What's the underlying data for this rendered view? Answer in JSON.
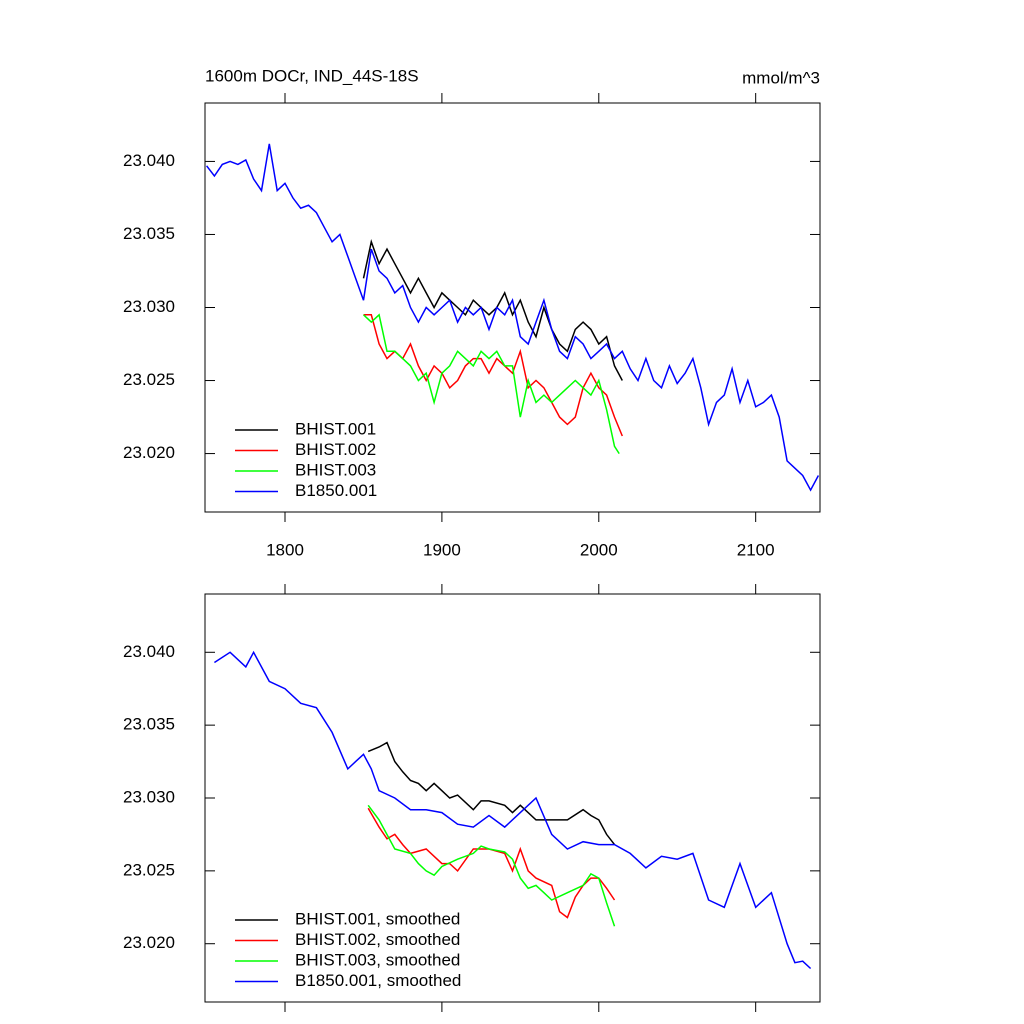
{
  "chart_data": [
    {
      "type": "line",
      "title": "1600m DOCr, IND_44S-18S",
      "units": "mmol/m^3",
      "xlim": [
        1749,
        2141
      ],
      "ylim": [
        23.016,
        23.044
      ],
      "xticks": [
        1800,
        1900,
        2000,
        2100
      ],
      "yticks": [
        {
          "value": 23.02,
          "label": "23.020"
        },
        {
          "value": 23.025,
          "label": "23.025"
        },
        {
          "value": 23.03,
          "label": "23.030"
        },
        {
          "value": 23.035,
          "label": "23.035"
        },
        {
          "value": 23.04,
          "label": "23.040"
        }
      ],
      "legend": "lower left",
      "series": [
        {
          "name": "BHIST.001",
          "color": "#000000",
          "x": [
            1850,
            1855,
            1860,
            1865,
            1870,
            1875,
            1880,
            1885,
            1890,
            1895,
            1900,
            1905,
            1910,
            1915,
            1920,
            1925,
            1930,
            1935,
            1940,
            1945,
            1950,
            1955,
            1960,
            1965,
            1970,
            1975,
            1980,
            1985,
            1990,
            1995,
            2000,
            2005,
            2010,
            2015
          ],
          "values": [
            23.032,
            23.0345,
            23.033,
            23.034,
            23.033,
            23.032,
            23.031,
            23.032,
            23.031,
            23.03,
            23.031,
            23.0305,
            23.03,
            23.0295,
            23.0305,
            23.03,
            23.0295,
            23.03,
            23.031,
            23.0295,
            23.0305,
            23.029,
            23.028,
            23.03,
            23.0285,
            23.0275,
            23.027,
            23.0285,
            23.029,
            23.0285,
            23.0275,
            23.028,
            23.026,
            23.025
          ]
        },
        {
          "name": "BHIST.002",
          "color": "#ff0000",
          "x": [
            1850,
            1855,
            1860,
            1865,
            1870,
            1875,
            1880,
            1885,
            1890,
            1895,
            1900,
            1905,
            1910,
            1915,
            1920,
            1925,
            1930,
            1935,
            1940,
            1945,
            1950,
            1955,
            1960,
            1965,
            1970,
            1975,
            1980,
            1985,
            1990,
            1995,
            2000,
            2005,
            2010,
            2015
          ],
          "values": [
            23.0295,
            23.0295,
            23.0275,
            23.0265,
            23.027,
            23.0265,
            23.0275,
            23.026,
            23.025,
            23.026,
            23.0255,
            23.0245,
            23.025,
            23.026,
            23.0265,
            23.0265,
            23.0255,
            23.0265,
            23.026,
            23.0255,
            23.027,
            23.0245,
            23.025,
            23.0245,
            23.0235,
            23.0225,
            23.022,
            23.0225,
            23.0245,
            23.0255,
            23.0245,
            23.024,
            23.0225,
            23.0212
          ]
        },
        {
          "name": "BHIST.003",
          "color": "#00ff00",
          "x": [
            1850,
            1855,
            1860,
            1865,
            1870,
            1875,
            1880,
            1885,
            1890,
            1895,
            1900,
            1905,
            1910,
            1915,
            1920,
            1925,
            1930,
            1935,
            1940,
            1945,
            1950,
            1955,
            1960,
            1965,
            1970,
            1975,
            1980,
            1985,
            1990,
            1995,
            2000,
            2005,
            2010,
            2013
          ],
          "values": [
            23.0295,
            23.029,
            23.0295,
            23.027,
            23.027,
            23.0265,
            23.026,
            23.025,
            23.0255,
            23.0235,
            23.0255,
            23.026,
            23.027,
            23.0265,
            23.026,
            23.027,
            23.0265,
            23.027,
            23.026,
            23.026,
            23.0225,
            23.025,
            23.0235,
            23.024,
            23.0235,
            23.024,
            23.0245,
            23.025,
            23.0245,
            23.024,
            23.025,
            23.023,
            23.0205,
            23.02
          ]
        },
        {
          "name": "B1850.001",
          "color": "#0000ff",
          "x": [
            1750,
            1755,
            1760,
            1765,
            1770,
            1775,
            1780,
            1785,
            1790,
            1795,
            1800,
            1805,
            1810,
            1815,
            1820,
            1825,
            1830,
            1835,
            1840,
            1845,
            1850,
            1855,
            1860,
            1865,
            1870,
            1875,
            1880,
            1885,
            1890,
            1895,
            1900,
            1905,
            1910,
            1915,
            1920,
            1925,
            1930,
            1935,
            1940,
            1945,
            1950,
            1955,
            1960,
            1965,
            1970,
            1975,
            1980,
            1985,
            1990,
            1995,
            2000,
            2005,
            2010,
            2015,
            2020,
            2025,
            2030,
            2035,
            2040,
            2045,
            2050,
            2055,
            2060,
            2065,
            2070,
            2075,
            2080,
            2085,
            2090,
            2095,
            2100,
            2105,
            2110,
            2115,
            2120,
            2125,
            2130,
            2135,
            2140
          ],
          "values": [
            23.0397,
            23.039,
            23.0398,
            23.04,
            23.0398,
            23.0401,
            23.0388,
            23.038,
            23.0412,
            23.038,
            23.0385,
            23.0375,
            23.0368,
            23.037,
            23.0365,
            23.0355,
            23.0345,
            23.035,
            23.0335,
            23.032,
            23.0305,
            23.034,
            23.0325,
            23.032,
            23.031,
            23.0315,
            23.03,
            23.029,
            23.03,
            23.0295,
            23.03,
            23.0305,
            23.029,
            23.03,
            23.0295,
            23.03,
            23.0285,
            23.03,
            23.0295,
            23.0305,
            23.028,
            23.0275,
            23.029,
            23.0305,
            23.0285,
            23.027,
            23.0265,
            23.028,
            23.0275,
            23.0265,
            23.027,
            23.0275,
            23.0265,
            23.027,
            23.0258,
            23.025,
            23.0265,
            23.025,
            23.0245,
            23.026,
            23.0248,
            23.0255,
            23.0265,
            23.0245,
            23.022,
            23.0235,
            23.024,
            23.0258,
            23.0235,
            23.025,
            23.0232,
            23.0235,
            23.024,
            23.0225,
            23.0195,
            23.019,
            23.0185,
            23.0175,
            23.0185
          ]
        }
      ]
    },
    {
      "type": "line",
      "xlim": [
        1749,
        2141
      ],
      "ylim": [
        23.016,
        23.044
      ],
      "xticks": [
        1800,
        1900,
        2000,
        2100
      ],
      "yticks": [
        {
          "value": 23.02,
          "label": "23.020"
        },
        {
          "value": 23.025,
          "label": "23.025"
        },
        {
          "value": 23.03,
          "label": "23.030"
        },
        {
          "value": 23.035,
          "label": "23.035"
        },
        {
          "value": 23.04,
          "label": "23.040"
        }
      ],
      "legend": "lower left",
      "series": [
        {
          "name": "BHIST.001, smoothed",
          "color": "#000000",
          "x": [
            1853,
            1860,
            1865,
            1870,
            1875,
            1880,
            1885,
            1890,
            1895,
            1900,
            1905,
            1910,
            1920,
            1925,
            1930,
            1940,
            1945,
            1950,
            1960,
            1970,
            1980,
            1990,
            1995,
            2000,
            2005,
            2010
          ],
          "values": [
            23.0332,
            23.0335,
            23.0338,
            23.0325,
            23.0318,
            23.0312,
            23.031,
            23.0305,
            23.031,
            23.0305,
            23.03,
            23.0302,
            23.0292,
            23.0298,
            23.0298,
            23.0295,
            23.029,
            23.0295,
            23.0285,
            23.0285,
            23.0285,
            23.0292,
            23.0288,
            23.0285,
            23.0275,
            23.0268
          ]
        },
        {
          "name": "BHIST.002, smoothed",
          "color": "#ff0000",
          "x": [
            1853,
            1860,
            1865,
            1870,
            1875,
            1880,
            1890,
            1900,
            1905,
            1910,
            1920,
            1930,
            1940,
            1945,
            1950,
            1955,
            1960,
            1970,
            1975,
            1980,
            1985,
            1990,
            1995,
            2000,
            2005,
            2010
          ],
          "values": [
            23.0293,
            23.028,
            23.0272,
            23.0275,
            23.0268,
            23.0262,
            23.0265,
            23.0255,
            23.0255,
            23.025,
            23.0265,
            23.0265,
            23.0262,
            23.025,
            23.0265,
            23.025,
            23.0245,
            23.024,
            23.0222,
            23.0218,
            23.0232,
            23.024,
            23.0245,
            23.0245,
            23.0238,
            23.023
          ]
        },
        {
          "name": "BHIST.003, smoothed",
          "color": "#00ff00",
          "x": [
            1853,
            1860,
            1870,
            1880,
            1885,
            1890,
            1895,
            1900,
            1910,
            1920,
            1925,
            1930,
            1940,
            1945,
            1950,
            1955,
            1960,
            1965,
            1970,
            1980,
            1990,
            1995,
            2000,
            2005,
            2010
          ],
          "values": [
            23.0295,
            23.0285,
            23.0265,
            23.0262,
            23.0255,
            23.025,
            23.0247,
            23.0253,
            23.0258,
            23.0262,
            23.0267,
            23.0265,
            23.0263,
            23.0258,
            23.0245,
            23.0238,
            23.024,
            23.0235,
            23.023,
            23.0235,
            23.024,
            23.0248,
            23.0245,
            23.0228,
            23.0212
          ]
        },
        {
          "name": "B1850.001, smoothed",
          "color": "#0000ff",
          "x": [
            1755,
            1765,
            1775,
            1780,
            1790,
            1800,
            1810,
            1820,
            1830,
            1840,
            1845,
            1850,
            1855,
            1860,
            1870,
            1880,
            1890,
            1900,
            1910,
            1920,
            1930,
            1940,
            1950,
            1960,
            1970,
            1980,
            1990,
            2000,
            2010,
            2020,
            2030,
            2040,
            2050,
            2060,
            2070,
            2080,
            2090,
            2100,
            2110,
            2120,
            2125,
            2130,
            2135
          ],
          "values": [
            23.0393,
            23.04,
            23.039,
            23.04,
            23.038,
            23.0375,
            23.0365,
            23.0362,
            23.0345,
            23.032,
            23.0325,
            23.033,
            23.032,
            23.0305,
            23.03,
            23.0292,
            23.0292,
            23.029,
            23.0282,
            23.028,
            23.0288,
            23.028,
            23.029,
            23.03,
            23.0275,
            23.0265,
            23.027,
            23.0268,
            23.0268,
            23.0262,
            23.0252,
            23.026,
            23.0258,
            23.0262,
            23.023,
            23.0225,
            23.0255,
            23.0225,
            23.0235,
            23.02,
            23.0187,
            23.0188,
            23.0183
          ]
        }
      ]
    }
  ]
}
